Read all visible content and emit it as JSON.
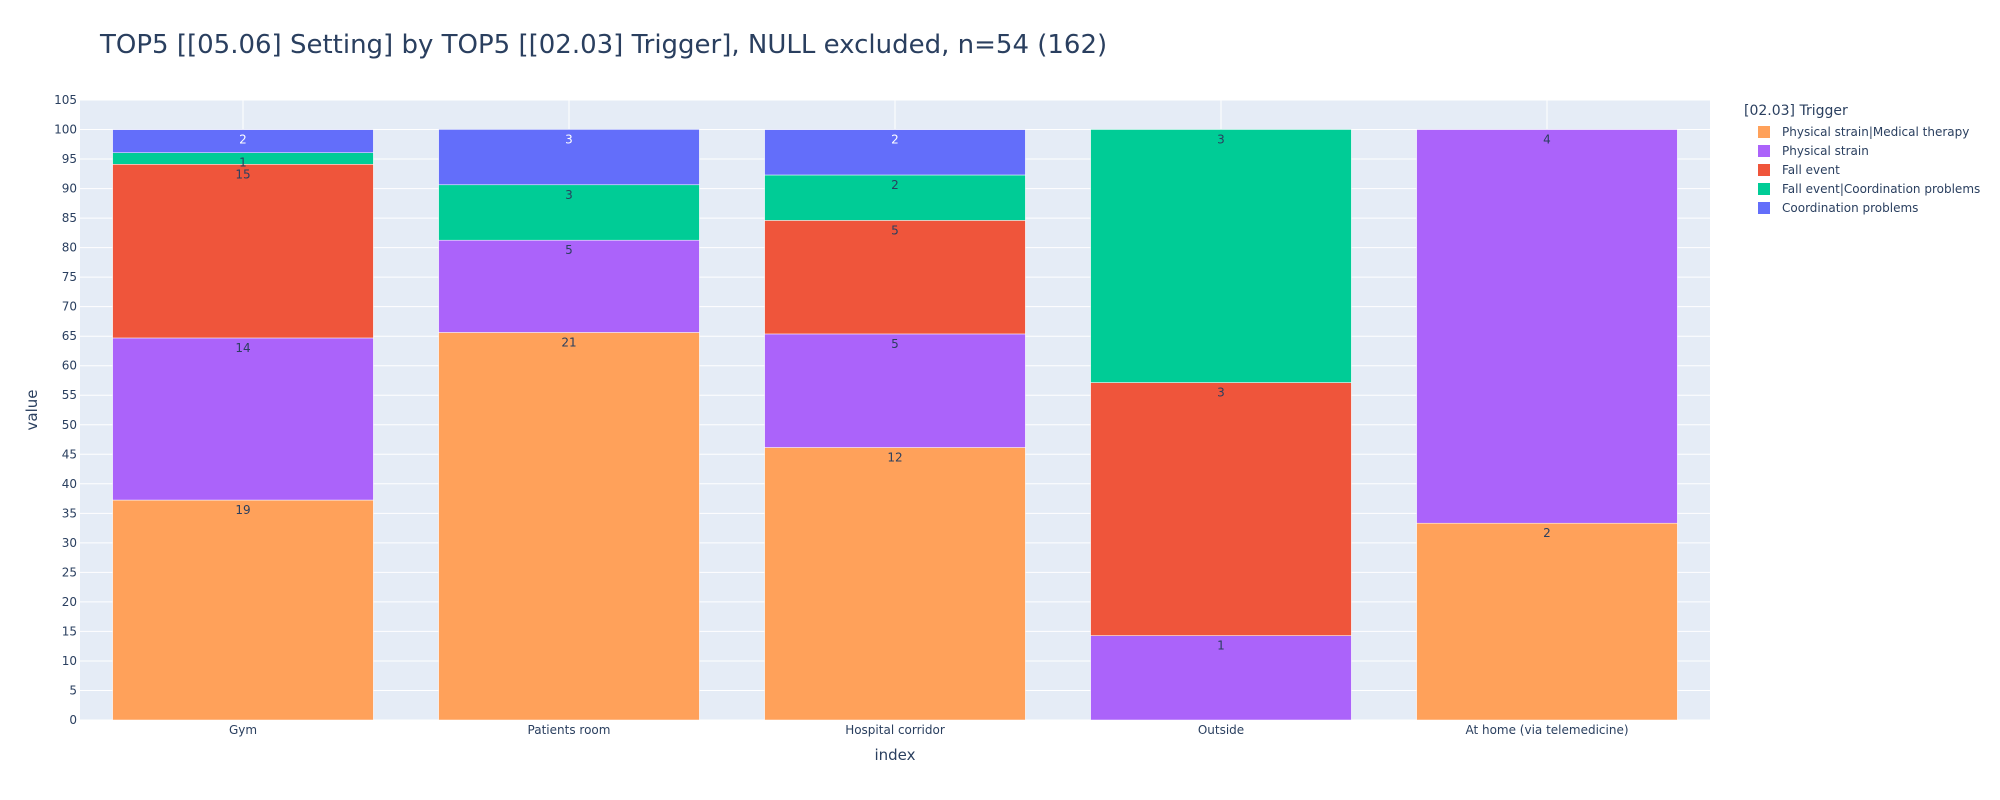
{
  "chart_data": {
    "type": "bar",
    "barmode": "stack",
    "title": "TOP5 [[05.06] Setting] by TOP5 [[02.03] Trigger], NULL excluded, n=54 (162)",
    "xlabel": "index",
    "ylabel": "value",
    "ylim": [
      0,
      105
    ],
    "y_tick_step": 5,
    "grid": true,
    "legend": {
      "title": "[02.03] Trigger",
      "placement": "top-right"
    },
    "categories": [
      "Gym",
      "Patients room",
      "Hospital corridor",
      "Outside",
      "At home (via telemedicine)"
    ],
    "series": [
      {
        "name": "Physical strain|Medical therapy",
        "color": "#FFA15A",
        "values": [
          37.25,
          65.63,
          46.15,
          0,
          33.33
        ],
        "labels": [
          "19",
          "21",
          "12",
          "",
          "2"
        ]
      },
      {
        "name": "Physical strain",
        "color": "#AB63FA",
        "values": [
          27.45,
          15.63,
          19.23,
          14.29,
          66.67
        ],
        "labels": [
          "14",
          "5",
          "5",
          "1",
          "4"
        ]
      },
      {
        "name": "Fall event",
        "color": "#EF553B",
        "values": [
          29.41,
          0,
          19.23,
          42.86,
          0
        ],
        "labels": [
          "15",
          "",
          "5",
          "3",
          ""
        ]
      },
      {
        "name": "Fall event|Coordination problems",
        "color": "#00CC96",
        "values": [
          1.96,
          9.38,
          7.69,
          42.86,
          0
        ],
        "labels": [
          "1",
          "3",
          "2",
          "3",
          ""
        ]
      },
      {
        "name": "Coordination problems",
        "color": "#636EFA",
        "values": [
          3.92,
          9.38,
          7.69,
          0,
          0
        ],
        "labels": [
          "2",
          "3",
          "2",
          "",
          ""
        ]
      }
    ]
  }
}
